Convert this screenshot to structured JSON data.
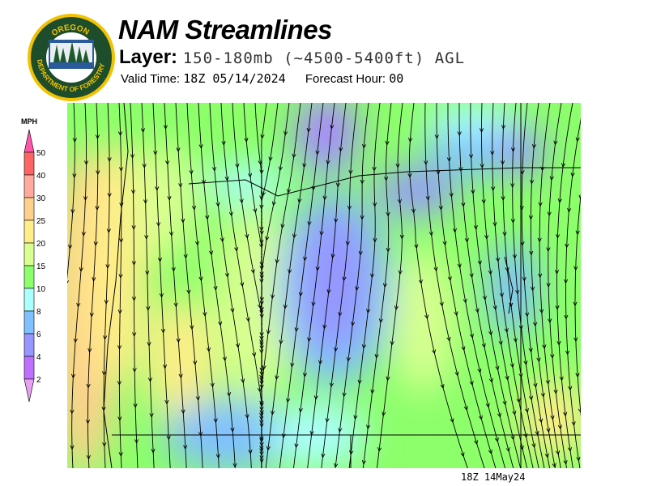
{
  "logo": {
    "text_top": "OREGON",
    "text_bottom": "DEPARTMENT OF FORESTRY"
  },
  "header": {
    "title": "NAM Streamlines",
    "layer_label": "Layer:",
    "layer_value": "150-180mb (~4500-5400ft) AGL",
    "valid_label": "Valid Time:",
    "valid_value": "18Z 05/14/2024",
    "forecast_label": "Forecast Hour:",
    "forecast_value": "00"
  },
  "legend": {
    "unit": "MPH",
    "ticks": [
      "50",
      "40",
      "30",
      "25",
      "20",
      "15",
      "10",
      "8",
      "6",
      "4",
      "2"
    ],
    "colors": [
      "#ff55aa",
      "#ff6464",
      "#ffaa9c",
      "#ffd08c",
      "#ffee88",
      "#d8ff90",
      "#8cff6a",
      "#aaffff",
      "#80c0ff",
      "#9696ff",
      "#c070ff",
      "#e8a0f0"
    ]
  },
  "footer": {
    "timestamp": "18Z 14May24"
  }
}
